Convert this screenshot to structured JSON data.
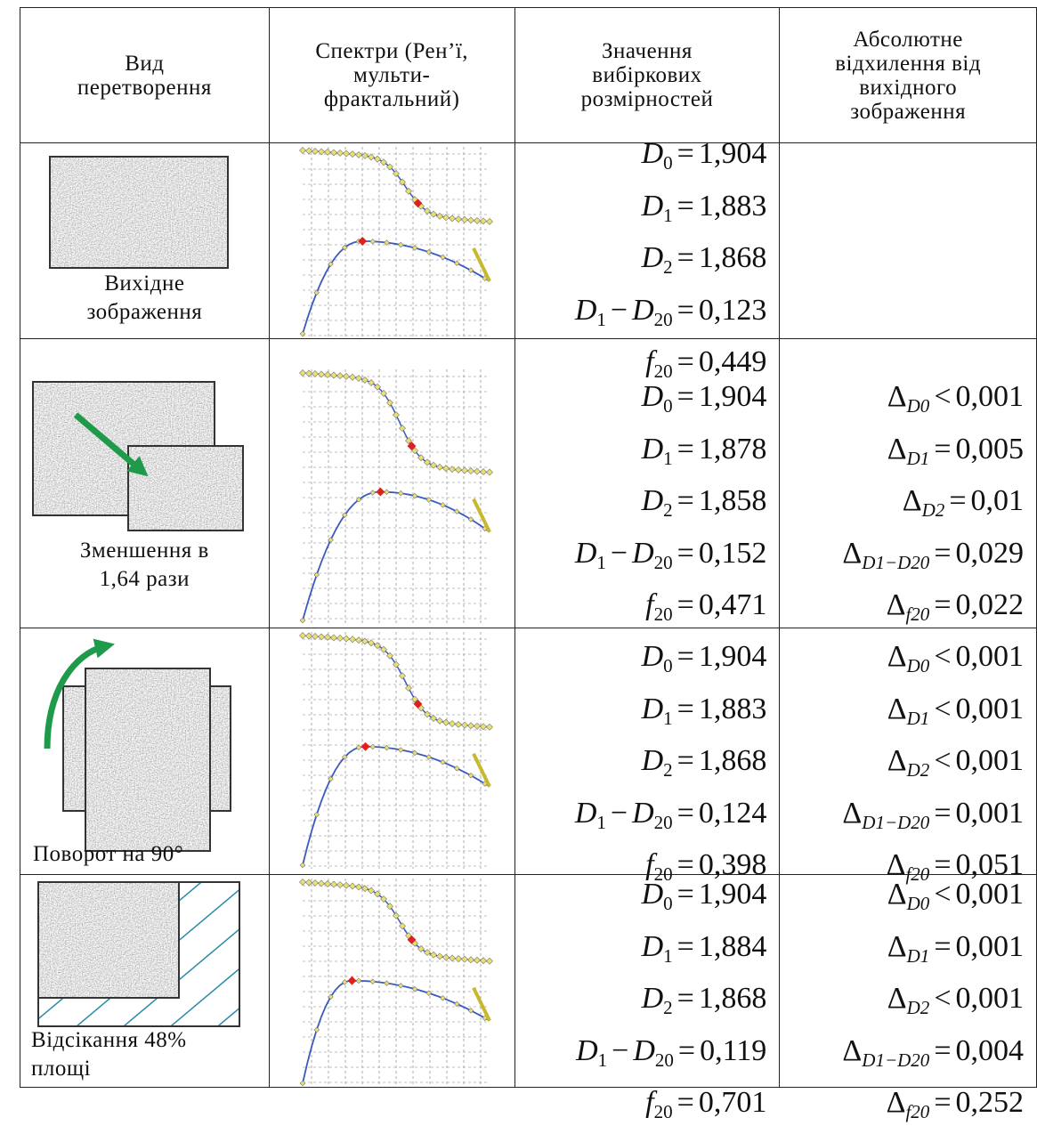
{
  "header": [
    [
      "Вид",
      "перетворення"
    ],
    [
      "Спектри (Рен’ї,",
      "мульти-",
      "фрактальний)"
    ],
    [
      "Значення",
      "вибіркових",
      "розмірностей"
    ],
    [
      "Абсолютне",
      "відхилення від",
      "вихідного",
      "зображення"
    ]
  ],
  "rows": [
    {
      "label": [
        "Вихідне",
        "зображення"
      ],
      "values": [
        [
          {
            "text": "D",
            "sub": "0"
          },
          {
            "text": "="
          },
          {
            "text": "1,904"
          }
        ],
        [
          {
            "text": "D",
            "sub": "1"
          },
          {
            "text": "="
          },
          {
            "text": "1,883"
          }
        ],
        [
          {
            "text": "D",
            "sub": "2"
          },
          {
            "text": "="
          },
          {
            "text": "1,868"
          }
        ],
        [
          {
            "text": "D",
            "sub": "1"
          },
          {
            "text": "−"
          },
          {
            "text": "D",
            "sub": "20"
          },
          {
            "text": "="
          },
          {
            "text": "0,123"
          }
        ],
        [
          {
            "text": "f",
            "sub": "20"
          },
          {
            "text": "="
          },
          {
            "text": "0,449"
          }
        ]
      ],
      "deviations": []
    },
    {
      "label": [
        "Зменшення в",
        "1,64 рази"
      ],
      "values": [
        [
          {
            "text": "D",
            "sub": "0"
          },
          {
            "text": "="
          },
          {
            "text": "1,904"
          }
        ],
        [
          {
            "text": "D",
            "sub": "1"
          },
          {
            "text": "="
          },
          {
            "text": "1,878"
          }
        ],
        [
          {
            "text": "D",
            "sub": "2"
          },
          {
            "text": "="
          },
          {
            "text": "1,858"
          }
        ],
        [
          {
            "text": "D",
            "sub": "1"
          },
          {
            "text": "−"
          },
          {
            "text": "D",
            "sub": "20"
          },
          {
            "text": "="
          },
          {
            "text": "0,152"
          }
        ],
        [
          {
            "text": "f",
            "sub": "20"
          },
          {
            "text": "="
          },
          {
            "text": "0,471"
          }
        ]
      ],
      "deviations": [
        [
          {
            "text": "Δ",
            "sub": "D0"
          },
          {
            "text": "<"
          },
          {
            "text": "0,001"
          }
        ],
        [
          {
            "text": "Δ",
            "sub": "D1"
          },
          {
            "text": "="
          },
          {
            "text": "0,005"
          }
        ],
        [
          {
            "text": "Δ",
            "sub": "D2"
          },
          {
            "text": "="
          },
          {
            "text": "0,01"
          }
        ],
        [
          {
            "text": "Δ",
            "sub": "D1−D20"
          },
          {
            "text": "="
          },
          {
            "text": "0,029"
          }
        ],
        [
          {
            "text": "Δ",
            "sub": "f20"
          },
          {
            "text": "="
          },
          {
            "text": "0,022"
          }
        ]
      ]
    },
    {
      "label": [
        "Поворот на 90°"
      ],
      "values": [
        [
          {
            "text": "D",
            "sub": "0"
          },
          {
            "text": "="
          },
          {
            "text": "1,904"
          }
        ],
        [
          {
            "text": "D",
            "sub": "1"
          },
          {
            "text": "="
          },
          {
            "text": "1,883"
          }
        ],
        [
          {
            "text": "D",
            "sub": "2"
          },
          {
            "text": "="
          },
          {
            "text": "1,868"
          }
        ],
        [
          {
            "text": "D",
            "sub": "1"
          },
          {
            "text": "−"
          },
          {
            "text": "D",
            "sub": "20"
          },
          {
            "text": "="
          },
          {
            "text": "0,124"
          }
        ],
        [
          {
            "text": "f",
            "sub": "20"
          },
          {
            "text": "="
          },
          {
            "text": "0,398"
          }
        ]
      ],
      "deviations": [
        [
          {
            "text": "Δ",
            "sub": "D0"
          },
          {
            "text": "<"
          },
          {
            "text": "0,001"
          }
        ],
        [
          {
            "text": "Δ",
            "sub": "D1"
          },
          {
            "text": "<"
          },
          {
            "text": "0,001"
          }
        ],
        [
          {
            "text": "Δ",
            "sub": "D2"
          },
          {
            "text": "<"
          },
          {
            "text": "0,001"
          }
        ],
        [
          {
            "text": "Δ",
            "sub": "D1−D20"
          },
          {
            "text": "="
          },
          {
            "text": "0,001"
          }
        ],
        [
          {
            "text": "Δ",
            "sub": "f20"
          },
          {
            "text": "="
          },
          {
            "text": "0,051"
          }
        ]
      ]
    },
    {
      "label": [
        "Відсікання 48%",
        "площі"
      ],
      "values": [
        [
          {
            "text": "D",
            "sub": "0"
          },
          {
            "text": "="
          },
          {
            "text": "1,904"
          }
        ],
        [
          {
            "text": "D",
            "sub": "1"
          },
          {
            "text": "="
          },
          {
            "text": "1,884"
          }
        ],
        [
          {
            "text": "D",
            "sub": "2"
          },
          {
            "text": "="
          },
          {
            "text": "1,868"
          }
        ],
        [
          {
            "text": "D",
            "sub": "1"
          },
          {
            "text": "−"
          },
          {
            "text": "D",
            "sub": "20"
          },
          {
            "text": "="
          },
          {
            "text": "0,119"
          }
        ],
        [
          {
            "text": "f",
            "sub": "20"
          },
          {
            "text": "="
          },
          {
            "text": "0,701"
          }
        ]
      ],
      "deviations": [
        [
          {
            "text": "Δ",
            "sub": "D0"
          },
          {
            "text": "<"
          },
          {
            "text": "0,001"
          }
        ],
        [
          {
            "text": "Δ",
            "sub": "D1"
          },
          {
            "text": "="
          },
          {
            "text": "0,001"
          }
        ],
        [
          {
            "text": "Δ",
            "sub": "D2"
          },
          {
            "text": "<"
          },
          {
            "text": "0,001"
          }
        ],
        [
          {
            "text": "Δ",
            "sub": "D1−D20"
          },
          {
            "text": "="
          },
          {
            "text": "0,004"
          }
        ],
        [
          {
            "text": "Δ",
            "sub": "f20"
          },
          {
            "text": "="
          },
          {
            "text": "0,252"
          }
        ]
      ]
    }
  ]
}
